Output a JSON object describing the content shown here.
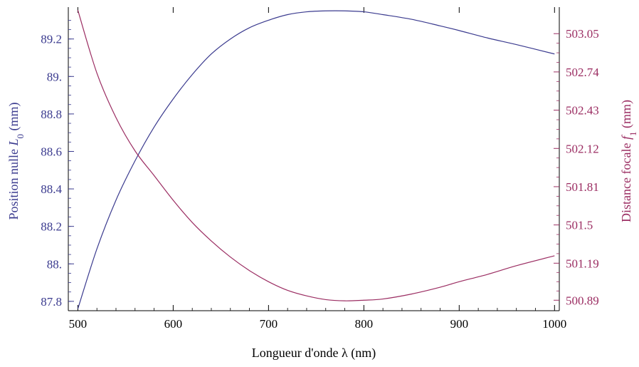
{
  "colors": {
    "left_series": "#3b3b8f",
    "right_series": "#9b2d62",
    "frame": "#000000"
  },
  "chart_data": {
    "type": "line",
    "title": "",
    "xlabel": "Longueur d'onde λ (nm)",
    "ylabel_left": {
      "base": "Position nulle ",
      "symbol": "L",
      "sub": "0",
      "unit": " (mm)"
    },
    "ylabel_right": {
      "base": "Distance focale ",
      "symbol": "f",
      "sub": "1",
      "unit": " (mm)"
    },
    "xlim": [
      490,
      1005
    ],
    "ylim_left": [
      87.75,
      89.37
    ],
    "ylim_right": [
      500.805,
      503.265
    ],
    "x_ticks": [
      {
        "value": 500,
        "label": "500"
      },
      {
        "value": 600,
        "label": "600"
      },
      {
        "value": 700,
        "label": "700"
      },
      {
        "value": 800,
        "label": "800"
      },
      {
        "value": 900,
        "label": "900"
      },
      {
        "value": 1000,
        "label": "1000"
      }
    ],
    "y_left_ticks": [
      {
        "value": 87.8,
        "label": "87.8"
      },
      {
        "value": 88.0,
        "label": "88."
      },
      {
        "value": 88.2,
        "label": "88.2"
      },
      {
        "value": 88.4,
        "label": "88.4"
      },
      {
        "value": 88.6,
        "label": "88.6"
      },
      {
        "value": 88.8,
        "label": "88.8"
      },
      {
        "value": 89.0,
        "label": "89."
      },
      {
        "value": 89.2,
        "label": "89.2"
      }
    ],
    "y_right_ticks": [
      {
        "value": 500.89,
        "label": "500.89"
      },
      {
        "value": 501.19,
        "label": "501.19"
      },
      {
        "value": 501.5,
        "label": "501.5"
      },
      {
        "value": 501.81,
        "label": "501.81"
      },
      {
        "value": 502.12,
        "label": "502.12"
      },
      {
        "value": 502.43,
        "label": "502.43"
      },
      {
        "value": 502.74,
        "label": "502.74"
      },
      {
        "value": 503.05,
        "label": "503.05"
      }
    ],
    "series": [
      {
        "axis": "left",
        "x": [
          500,
          520,
          540,
          560,
          580,
          600,
          620,
          640,
          660,
          680,
          700,
          720,
          740,
          760,
          780,
          800,
          820,
          850,
          880,
          900,
          930,
          960,
          1000
        ],
        "y": [
          87.76,
          88.08,
          88.34,
          88.55,
          88.73,
          88.88,
          89.01,
          89.12,
          89.2,
          89.26,
          89.3,
          89.33,
          89.345,
          89.35,
          89.35,
          89.345,
          89.33,
          89.305,
          89.27,
          89.245,
          89.205,
          89.17,
          89.12
        ]
      },
      {
        "axis": "right",
        "x": [
          500,
          520,
          540,
          560,
          580,
          600,
          620,
          640,
          660,
          680,
          700,
          720,
          740,
          760,
          780,
          800,
          820,
          850,
          880,
          900,
          930,
          960,
          1000
        ],
        "y": [
          503.24,
          502.73,
          502.37,
          502.1,
          501.9,
          501.7,
          501.52,
          501.37,
          501.24,
          501.13,
          501.04,
          500.97,
          500.925,
          500.895,
          500.885,
          500.89,
          500.9,
          500.94,
          500.995,
          501.04,
          501.1,
          501.17,
          501.25
        ]
      }
    ]
  }
}
